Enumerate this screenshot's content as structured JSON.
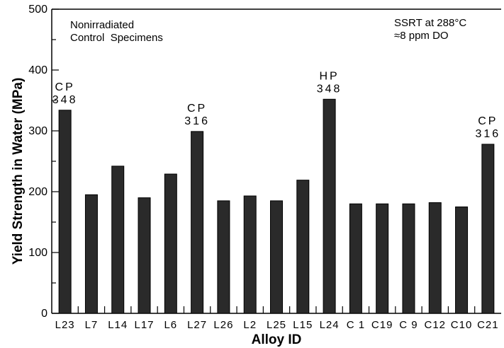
{
  "chart_data": {
    "type": "bar",
    "xlabel": "Alloy ID",
    "ylabel": "Yield Strength in Water (MPa)",
    "ylim": [
      0,
      500
    ],
    "yticks": [
      0,
      100,
      200,
      300,
      400,
      500
    ],
    "categories": [
      "L23",
      "L7",
      "L14",
      "L17",
      "L6",
      "L27",
      "L26",
      "L2",
      "L25",
      "L15",
      "L24",
      "C1",
      "C19",
      "C9",
      "C12",
      "C10",
      "C21"
    ],
    "category_labels": [
      "L23",
      "L7",
      "L14",
      "L17",
      "L6",
      "L27",
      "L26",
      "L2",
      "L25",
      "L15",
      "L24",
      "C 1",
      "C19",
      "C 9",
      "C12",
      "C10",
      "C21"
    ],
    "values": [
      334,
      195,
      242,
      190,
      229,
      299,
      185,
      193,
      185,
      219,
      352,
      180,
      180,
      180,
      182,
      175,
      278
    ],
    "bar_color": "#2a2a2a",
    "annotations_top_left": [
      "Nonirradiated",
      "Control  Specimens"
    ],
    "annotations_top_right": [
      "SSRT at 288°C",
      "≈8 ppm DO"
    ],
    "bar_annotations": [
      {
        "category": "L23",
        "lines": [
          "CP",
          "348"
        ]
      },
      {
        "category": "L27",
        "lines": [
          "CP",
          "316"
        ]
      },
      {
        "category": "L24",
        "lines": [
          "HP",
          "348"
        ]
      },
      {
        "category": "C21",
        "lines": [
          "CP",
          "316"
        ]
      }
    ]
  }
}
